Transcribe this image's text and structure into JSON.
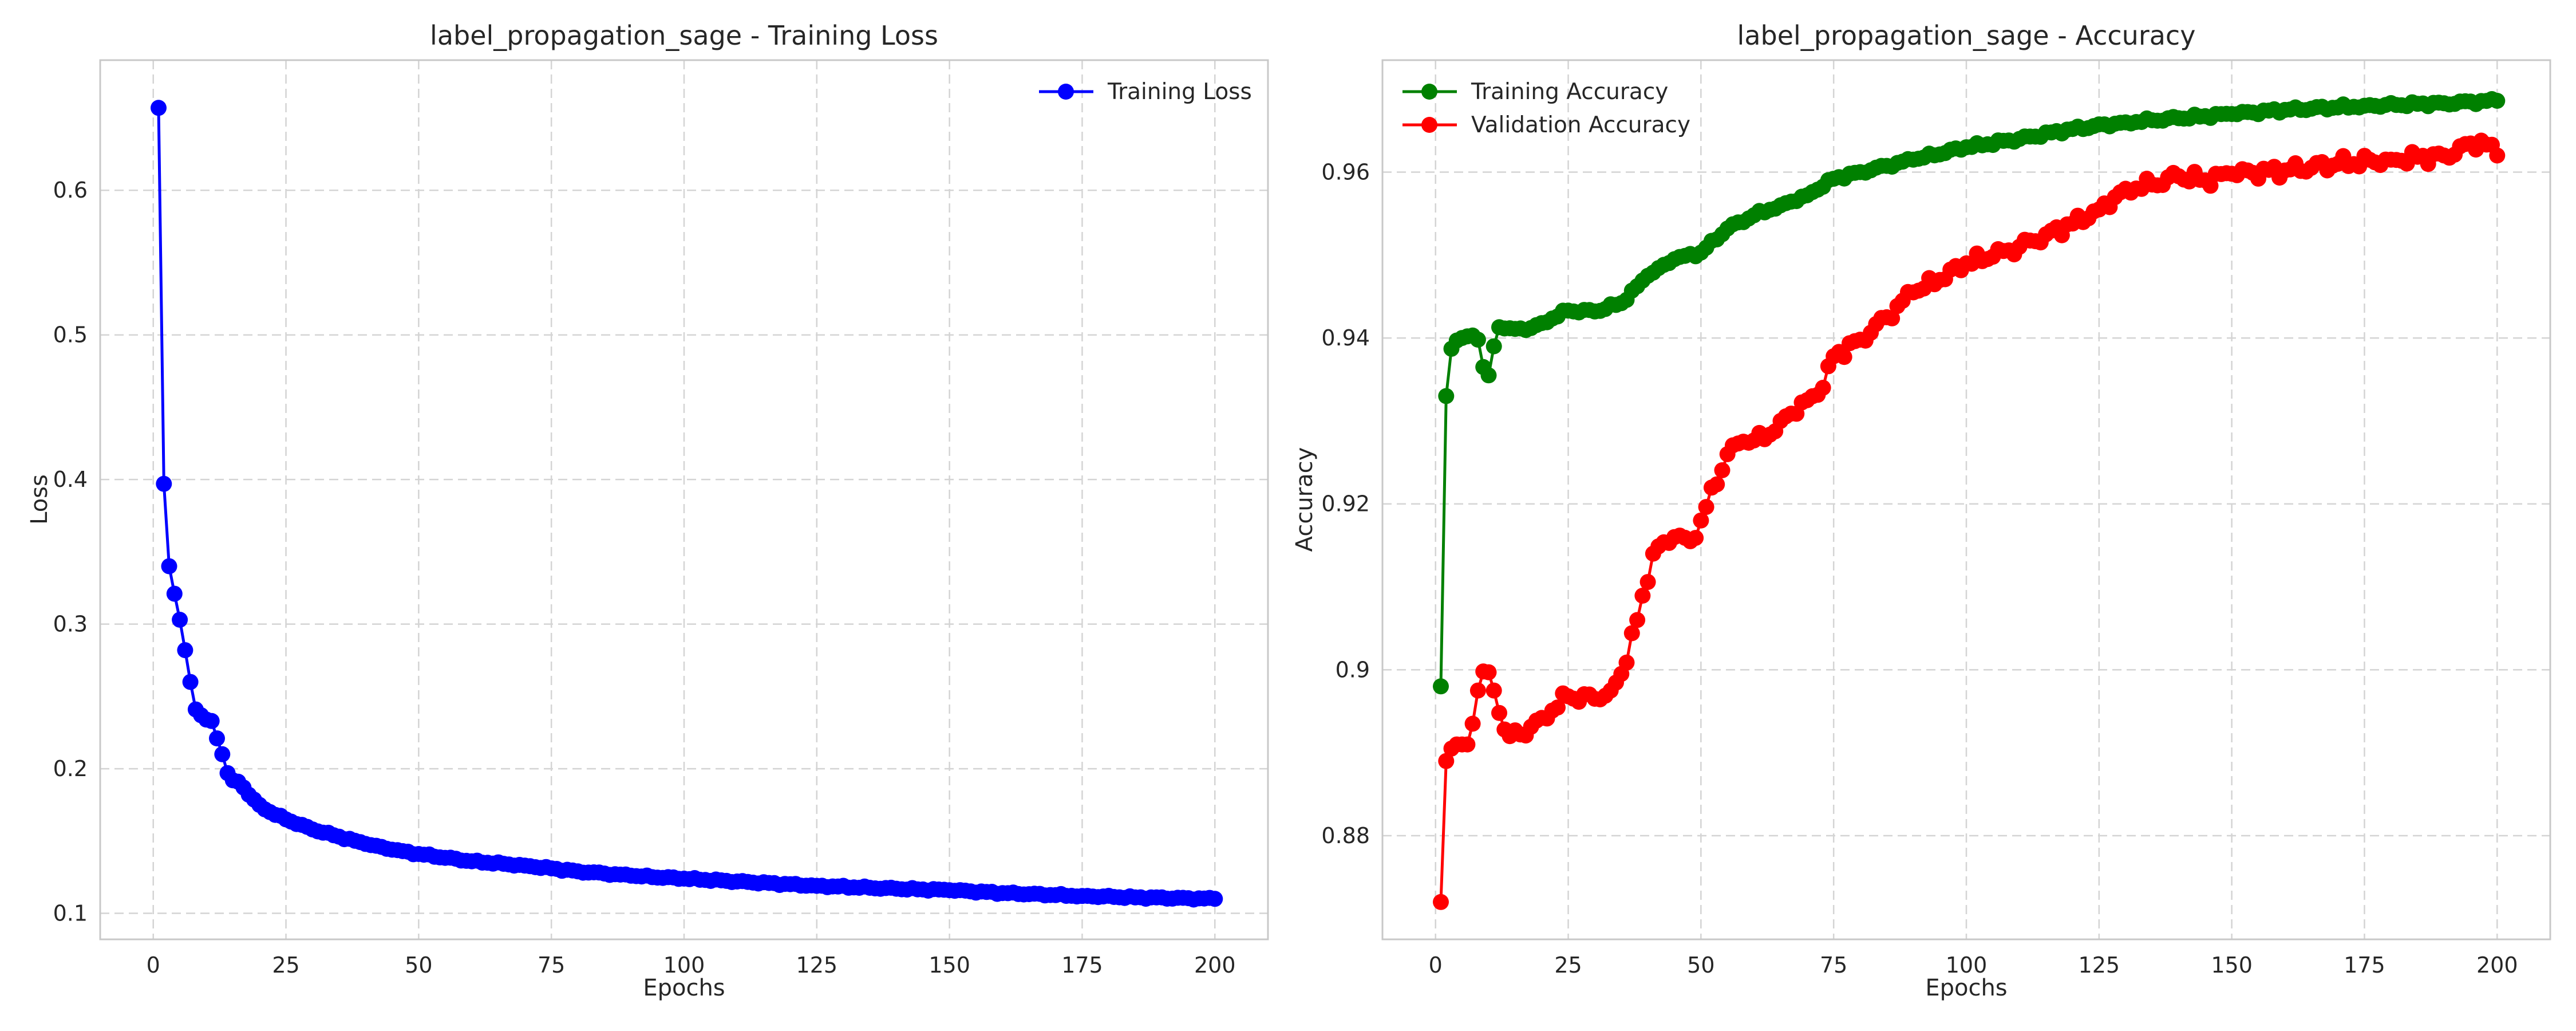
{
  "chart_data": [
    {
      "type": "line",
      "title": "label_propagation_sage - Training Loss",
      "xlabel": "Epochs",
      "ylabel": "Loss",
      "xlim": [
        -10,
        210
      ],
      "ylim": [
        0.082,
        0.69
      ],
      "xticks": [
        0,
        25,
        50,
        75,
        100,
        125,
        150,
        175,
        200
      ],
      "yticks": [
        0.1,
        0.2,
        0.3,
        0.4,
        0.5,
        0.6
      ],
      "grid": true,
      "legend_position": "upper right",
      "series": [
        {
          "name": "Training Loss",
          "color": "#0000ff",
          "marker": "circle",
          "anchors": [
            [
              1,
              0.657
            ],
            [
              2,
              0.397
            ],
            [
              3,
              0.34
            ],
            [
              4,
              0.321
            ],
            [
              5,
              0.303
            ],
            [
              6,
              0.282
            ],
            [
              7,
              0.26
            ],
            [
              8,
              0.241
            ],
            [
              9,
              0.237
            ],
            [
              10,
              0.234
            ],
            [
              11,
              0.233
            ],
            [
              12,
              0.221
            ],
            [
              13,
              0.21
            ],
            [
              14,
              0.197
            ],
            [
              15,
              0.192
            ],
            [
              16,
              0.191
            ],
            [
              17,
              0.187
            ],
            [
              18,
              0.182
            ],
            [
              20,
              0.175
            ],
            [
              22,
              0.17
            ],
            [
              25,
              0.165
            ],
            [
              30,
              0.158
            ],
            [
              35,
              0.153
            ],
            [
              40,
              0.148
            ],
            [
              45,
              0.144
            ],
            [
              50,
              0.141
            ],
            [
              60,
              0.136
            ],
            [
              70,
              0.133
            ],
            [
              80,
              0.129
            ],
            [
              90,
              0.126
            ],
            [
              100,
              0.124
            ],
            [
              110,
              0.122
            ],
            [
              125,
              0.119
            ],
            [
              140,
              0.117
            ],
            [
              150,
              0.116
            ],
            [
              160,
              0.114
            ],
            [
              175,
              0.112
            ],
            [
              185,
              0.111
            ],
            [
              200,
              0.11
            ]
          ],
          "wobble": 0.0008
        }
      ]
    },
    {
      "type": "line",
      "title": "label_propagation_sage - Accuracy",
      "xlabel": "Epochs",
      "ylabel": "Accuracy",
      "xlim": [
        -10,
        210
      ],
      "ylim": [
        0.8675,
        0.9735
      ],
      "xticks": [
        0,
        25,
        50,
        75,
        100,
        125,
        150,
        175,
        200
      ],
      "yticks": [
        0.88,
        0.9,
        0.92,
        0.94,
        0.96
      ],
      "grid": true,
      "legend_position": "upper left",
      "series": [
        {
          "name": "Training Accuracy",
          "color": "#008000",
          "marker": "circle",
          "anchors": [
            [
              1,
              0.898
            ],
            [
              2,
              0.933
            ],
            [
              3,
              0.9387
            ],
            [
              4,
              0.9397
            ],
            [
              5,
              0.94
            ],
            [
              6,
              0.9402
            ],
            [
              7,
              0.9403
            ],
            [
              8,
              0.9398
            ],
            [
              9,
              0.9365
            ],
            [
              10,
              0.9355
            ],
            [
              11,
              0.939
            ],
            [
              12,
              0.9413
            ],
            [
              15,
              0.9411
            ],
            [
              18,
              0.9412
            ],
            [
              20,
              0.9418
            ],
            [
              25,
              0.9433
            ],
            [
              30,
              0.9432
            ],
            [
              35,
              0.9442
            ],
            [
              40,
              0.9475
            ],
            [
              45,
              0.9495
            ],
            [
              50,
              0.9503
            ],
            [
              55,
              0.9532
            ],
            [
              60,
              0.9548
            ],
            [
              65,
              0.956
            ],
            [
              70,
              0.9572
            ],
            [
              75,
              0.9592
            ],
            [
              80,
              0.96
            ],
            [
              90,
              0.9615
            ],
            [
              100,
              0.963
            ],
            [
              110,
              0.964
            ],
            [
              120,
              0.9652
            ],
            [
              130,
              0.966
            ],
            [
              140,
              0.9665
            ],
            [
              150,
              0.967
            ],
            [
              160,
              0.9675
            ],
            [
              175,
              0.968
            ],
            [
              190,
              0.9683
            ],
            [
              200,
              0.9686
            ]
          ],
          "wobble": 0.0003
        },
        {
          "name": "Validation Accuracy",
          "color": "#ff0000",
          "marker": "circle",
          "anchors": [
            [
              1,
              0.872
            ],
            [
              2,
              0.889
            ],
            [
              3,
              0.8905
            ],
            [
              4,
              0.891
            ],
            [
              5,
              0.891
            ],
            [
              6,
              0.891
            ],
            [
              7,
              0.8935
            ],
            [
              8,
              0.8975
            ],
            [
              9,
              0.8998
            ],
            [
              10,
              0.8997
            ],
            [
              11,
              0.8975
            ],
            [
              12,
              0.8948
            ],
            [
              13,
              0.8928
            ],
            [
              14,
              0.892
            ],
            [
              16,
              0.8922
            ],
            [
              20,
              0.8942
            ],
            [
              25,
              0.8968
            ],
            [
              30,
              0.8965
            ],
            [
              33,
              0.8975
            ],
            [
              35,
              0.8995
            ],
            [
              38,
              0.906
            ],
            [
              41,
              0.914
            ],
            [
              45,
              0.916
            ],
            [
              48,
              0.9155
            ],
            [
              50,
              0.918
            ],
            [
              55,
              0.926
            ],
            [
              58,
              0.9275
            ],
            [
              62,
              0.9278
            ],
            [
              65,
              0.93
            ],
            [
              70,
              0.9325
            ],
            [
              73,
              0.934
            ],
            [
              75,
              0.9378
            ],
            [
              80,
              0.9398
            ],
            [
              85,
              0.9425
            ],
            [
              90,
              0.9455
            ],
            [
              95,
              0.947
            ],
            [
              100,
              0.949
            ],
            [
              105,
              0.9498
            ],
            [
              110,
              0.951
            ],
            [
              115,
              0.9525
            ],
            [
              120,
              0.9538
            ],
            [
              125,
              0.9555
            ],
            [
              130,
              0.958
            ],
            [
              135,
              0.9585
            ],
            [
              140,
              0.9595
            ],
            [
              145,
              0.959
            ],
            [
              150,
              0.9598
            ],
            [
              160,
              0.9602
            ],
            [
              170,
              0.961
            ],
            [
              180,
              0.9615
            ],
            [
              190,
              0.962
            ],
            [
              197,
              0.9638
            ],
            [
              200,
              0.962
            ]
          ],
          "wobble": 0.0009
        }
      ]
    }
  ]
}
